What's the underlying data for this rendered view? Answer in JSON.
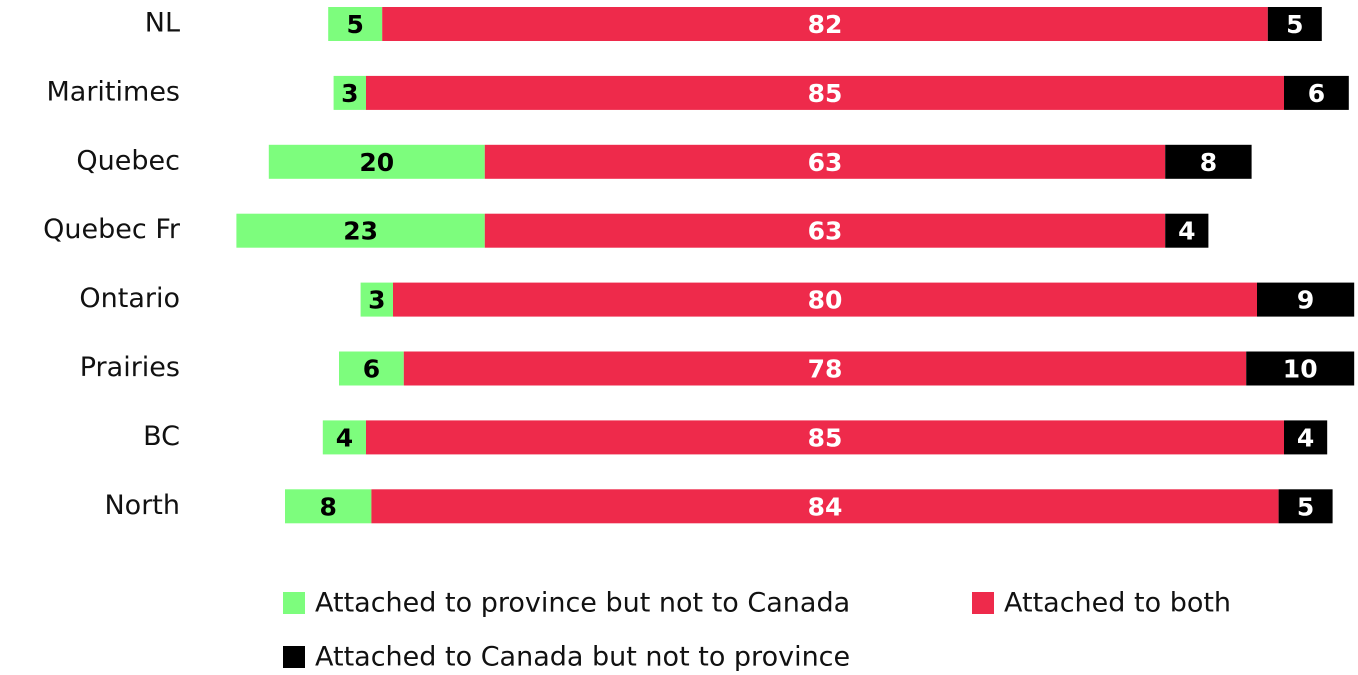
{
  "chart_data": {
    "type": "bar",
    "stacked": true,
    "orientation": "horizontal",
    "categories": [
      "NL",
      "Maritimes",
      "Quebec",
      "Quebec Fr",
      "Ontario",
      "Prairies",
      "BC",
      "North"
    ],
    "series": [
      {
        "name": "Attached to province but not to Canada",
        "color": "#7dfd7d",
        "text_color": "#000000",
        "values": [
          5,
          3,
          20,
          23,
          3,
          6,
          4,
          8
        ]
      },
      {
        "name": "Attached to both",
        "color": "#ee2a4b",
        "text_color": "#ffffff",
        "values": [
          82,
          85,
          63,
          63,
          80,
          78,
          85,
          84
        ]
      },
      {
        "name": "Attached to Canada but not to province",
        "color": "#000000",
        "text_color": "#ffffff",
        "values": [
          5,
          6,
          8,
          4,
          9,
          10,
          4,
          5
        ]
      }
    ]
  }
}
